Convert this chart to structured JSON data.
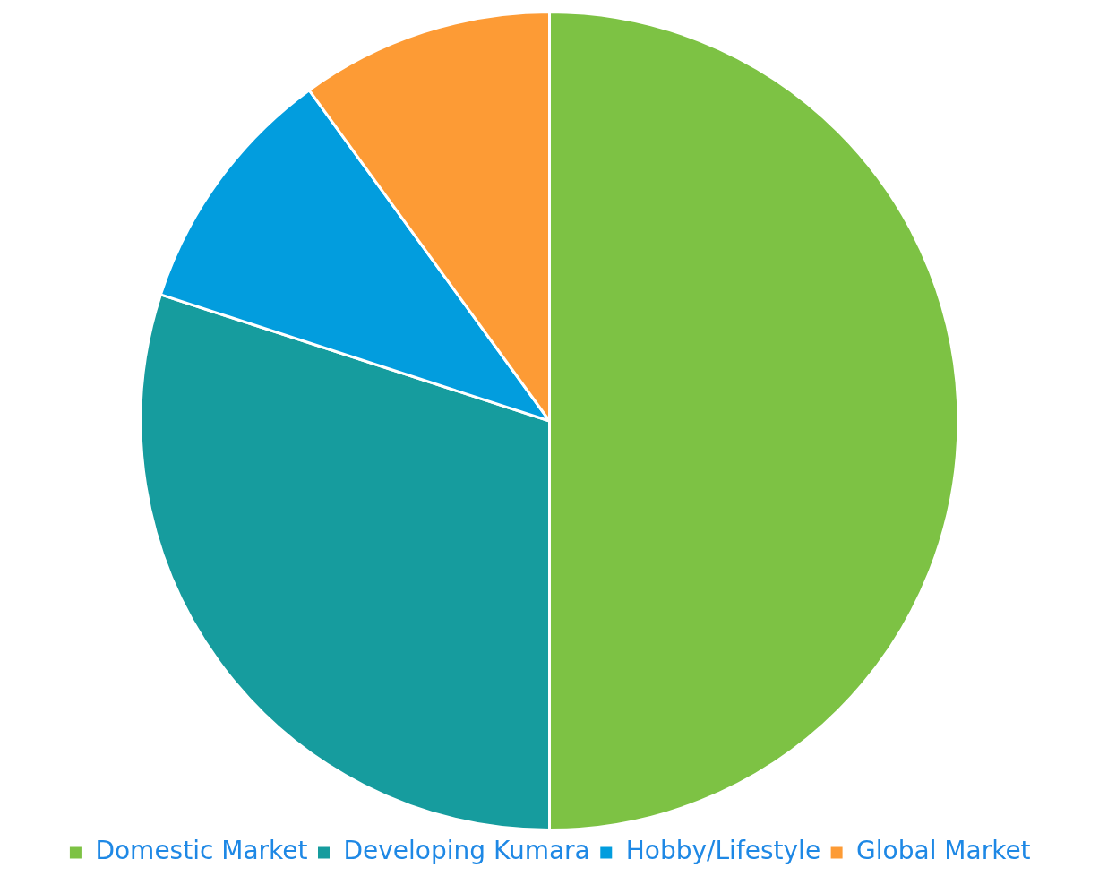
{
  "chart_data": {
    "type": "pie",
    "categories": [
      "Domestic Market",
      "Developing Kumara",
      "Hobby/Lifestyle",
      "Global Market"
    ],
    "values": [
      50,
      30,
      10,
      10
    ],
    "colors": [
      "#7dc244",
      "#169c9e",
      "#029dde",
      "#fd9b35"
    ],
    "legend": "bottom"
  }
}
